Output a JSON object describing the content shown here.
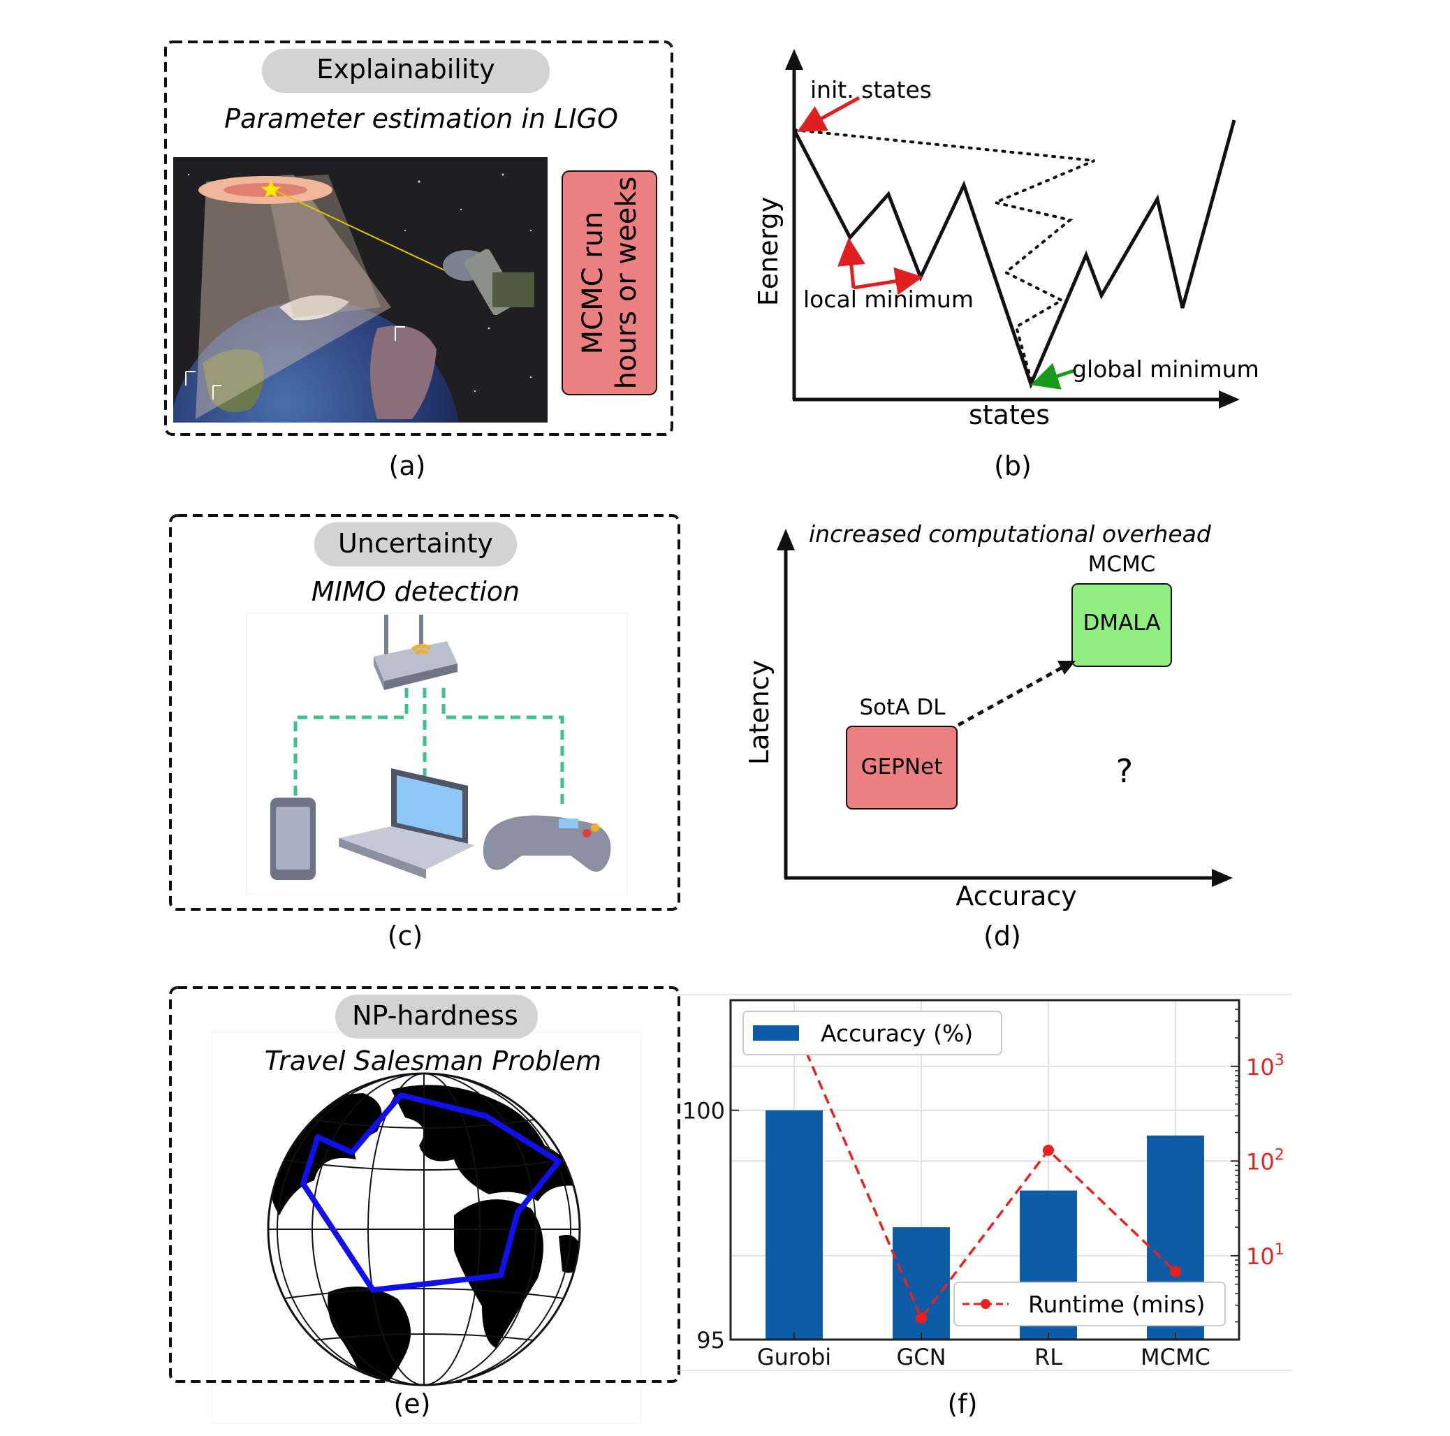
{
  "panel_a": {
    "pill": "Explainability",
    "subtitle": "Parameter estimation in LIGO",
    "side_box_lines": [
      "MCMC run",
      "hours or weeks"
    ],
    "caption": "(a)"
  },
  "panel_b": {
    "label_init": "init. states",
    "label_local": "local minimum",
    "label_global": "global minimum",
    "ylabel": "Eenergy",
    "xlabel": "states",
    "caption": "(b)"
  },
  "panel_c": {
    "pill": "Uncertainty",
    "subtitle": "MIMO detection",
    "caption": "(c)"
  },
  "panel_d": {
    "title": "increased computational overhead",
    "ylabel": "Latency",
    "xlabel": "Accuracy",
    "box_low": {
      "label": "GEPNet",
      "tag": "SotA DL"
    },
    "box_high": {
      "label": "DMALA",
      "tag": "MCMC"
    },
    "question": "?",
    "caption": "(d)"
  },
  "panel_e": {
    "pill": "NP-hardness",
    "subtitle": "Travel Salesman Problem",
    "caption": "(e)"
  },
  "panel_f": {
    "caption": "(f)"
  },
  "colors": {
    "pill_bg": "#d3d3d3",
    "red_box": "#ec8080",
    "green_box": "#90ee80",
    "bar_blue": "#0d5aa6",
    "runtime_red": "#e8211e",
    "arrow_red": "#e02020",
    "arrow_green": "#1a9a1a",
    "tour_blue": "#1010ee"
  },
  "chart_data": {
    "type": "bar",
    "categories": [
      "Gurobi",
      "GCN",
      "RL",
      "MCMC"
    ],
    "series": [
      {
        "name": "Accuracy (%)",
        "axis": "left",
        "kind": "bar",
        "values": [
          100.0,
          97.45,
          98.25,
          99.45
        ]
      },
      {
        "name": "Runtime (mins)",
        "axis": "right",
        "kind": "line",
        "style": "dashed",
        "values": [
          2800,
          2.2,
          130,
          6.8
        ]
      }
    ],
    "yticks_left": [
      "95",
      "100"
    ],
    "ylim_left": [
      95,
      102.4
    ],
    "yticks_right": [
      "10",
      "10",
      "10"
    ],
    "yticks_right_exponents": [
      "1",
      "2",
      "3"
    ],
    "right_scale": "log",
    "ylim_right": [
      1.3,
      5000
    ],
    "grid": true,
    "legend_bar_position": "top-left",
    "legend_line_position": "bottom-right"
  }
}
